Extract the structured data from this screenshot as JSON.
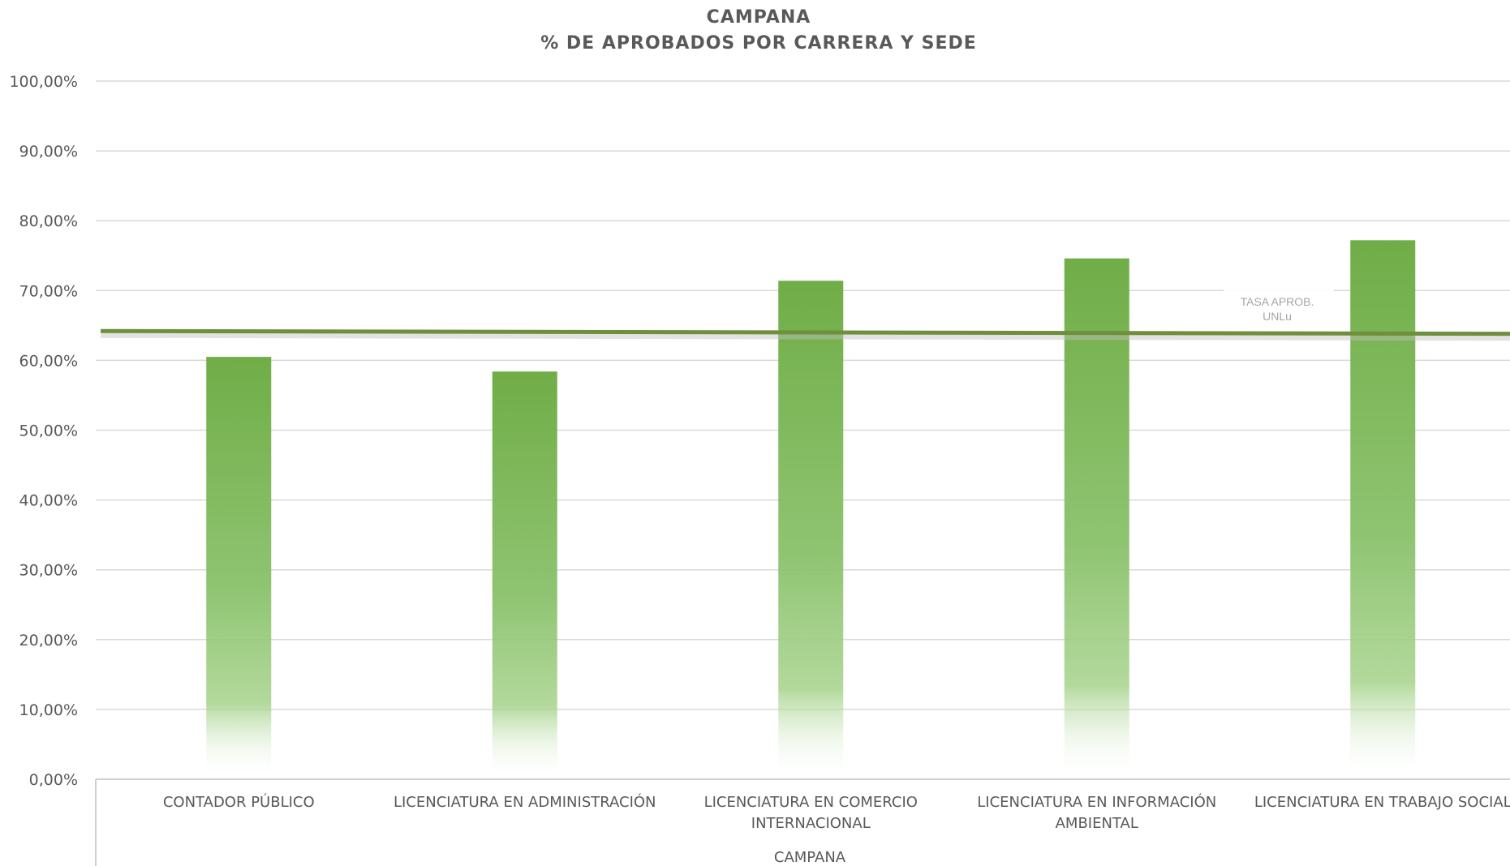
{
  "chart_data": {
    "type": "bar",
    "title": "CAMPANA",
    "subtitle": "% DE APROBADOS POR CARRERA Y SEDE",
    "group_label": "CAMPANA",
    "categories": [
      [
        "CONTADOR PÚBLICO"
      ],
      [
        "LICENCIATURA EN ADMINISTRACIÓN"
      ],
      [
        "LICENCIATURA EN COMERCIO",
        "INTERNACIONAL"
      ],
      [
        "LICENCIATURA EN INFORMACIÓN",
        "AMBIENTAL"
      ],
      [
        "LICENCIATURA EN TRABAJO SOCIAL"
      ]
    ],
    "values": [
      60.5,
      58.4,
      71.4,
      74.6,
      77.2
    ],
    "ylim": [
      0,
      100
    ],
    "yticks": [
      "0,00%",
      "10,00%",
      "20,00%",
      "30,00%",
      "40,00%",
      "50,00%",
      "60,00%",
      "70,00%",
      "80,00%",
      "90,00%",
      "100,00%"
    ],
    "grid": true,
    "bar_color": "#70ad47",
    "reference_line": {
      "label": [
        "TASA APROB.",
        "UNLu"
      ],
      "start_value": 64.2,
      "end_value": 63.8,
      "color": "#6f8f3a"
    }
  }
}
